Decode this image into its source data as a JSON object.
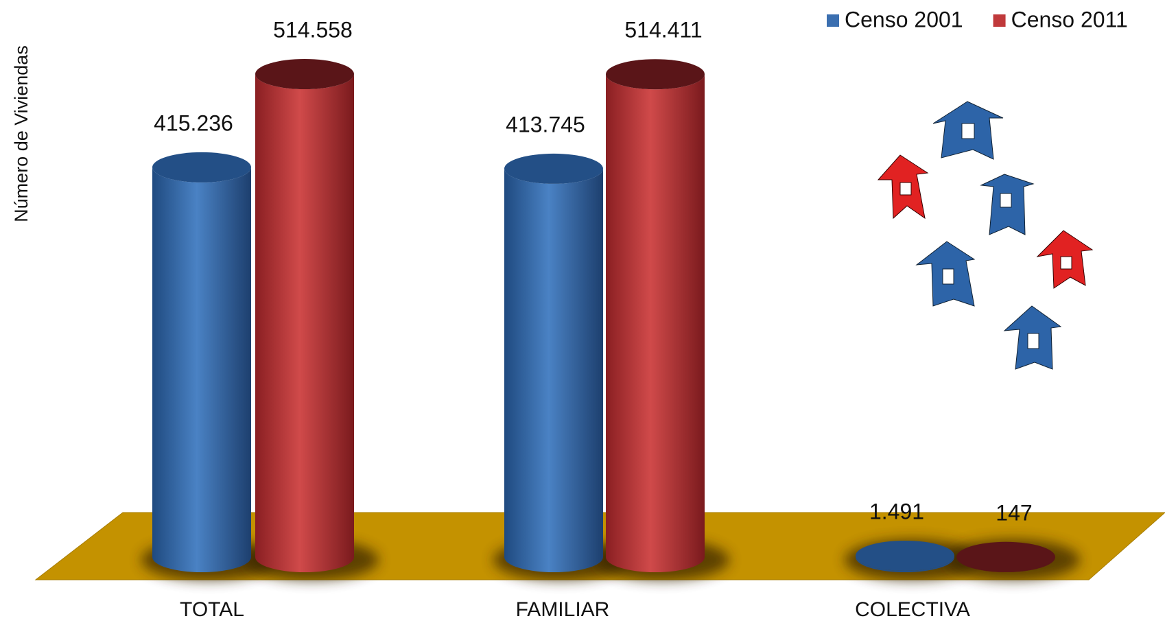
{
  "chart_data": {
    "type": "cylinder-bar",
    "y_label": "Número de Viviendas",
    "categories": [
      "TOTAL",
      "FAMILIAR",
      "COLECTIVA"
    ],
    "series": [
      {
        "name": "Censo 2001",
        "color": "#3b6fb0",
        "values": [
          415236,
          413745,
          1491
        ],
        "value_labels": [
          "415.236",
          "413.745",
          "1.491"
        ]
      },
      {
        "name": "Censo 2011",
        "color": "#c0393b",
        "values": [
          514558,
          514411,
          147
        ],
        "value_labels": [
          "514.558",
          "514.411",
          "147"
        ]
      }
    ],
    "legend": "top-right"
  }
}
